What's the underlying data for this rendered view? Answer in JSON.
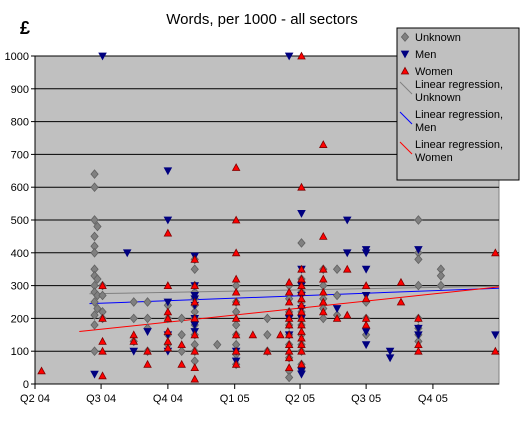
{
  "chart_data": {
    "type": "scatter",
    "title": "Words, per 1000 - all sectors",
    "ylabel": "£",
    "xlabel": "",
    "ylim": [
      0,
      1000
    ],
    "y_ticks": [
      0,
      100,
      200,
      300,
      400,
      500,
      600,
      700,
      800,
      900,
      1000
    ],
    "x_range": [
      "2004-04-01",
      "2005-12-31"
    ],
    "x_ticks": [
      {
        "label": "Q2 04",
        "date": "2004-04-01"
      },
      {
        "label": "Q3 04",
        "date": "2004-07-01"
      },
      {
        "label": "Q4 04",
        "date": "2004-10-01"
      },
      {
        "label": "Q1 05",
        "date": "2005-01-01"
      },
      {
        "label": "Q2 05",
        "date": "2005-04-01"
      },
      {
        "label": "Q3 05",
        "date": "2005-07-01"
      },
      {
        "label": "Q4 05",
        "date": "2005-10-01"
      }
    ],
    "grid": "horizontal",
    "plot_background": "#c0c0c0",
    "legend_placement": "top-right",
    "series": [
      {
        "name": "Unknown",
        "marker": "diamond",
        "color": "#808080",
        "edge": "#606060",
        "points": [
          [
            "2004-06-22",
            640
          ],
          [
            "2004-06-22",
            600
          ],
          [
            "2004-06-22",
            500
          ],
          [
            "2004-06-22",
            450
          ],
          [
            "2004-06-22",
            420
          ],
          [
            "2004-06-22",
            400
          ],
          [
            "2004-06-22",
            350
          ],
          [
            "2004-06-22",
            330
          ],
          [
            "2004-06-22",
            300
          ],
          [
            "2004-06-22",
            280
          ],
          [
            "2004-06-22",
            250
          ],
          [
            "2004-06-22",
            210
          ],
          [
            "2004-06-22",
            180
          ],
          [
            "2004-06-22",
            100
          ],
          [
            "2004-06-26",
            480
          ],
          [
            "2004-06-26",
            320
          ],
          [
            "2004-06-26",
            270
          ],
          [
            "2004-06-26",
            230
          ],
          [
            "2004-07-03",
            300
          ],
          [
            "2004-07-03",
            270
          ],
          [
            "2004-07-03",
            220
          ],
          [
            "2004-07-03",
            200
          ],
          [
            "2004-08-15",
            250
          ],
          [
            "2004-08-15",
            200
          ],
          [
            "2004-08-15",
            130
          ],
          [
            "2004-09-03",
            250
          ],
          [
            "2004-09-03",
            200
          ],
          [
            "2004-09-03",
            170
          ],
          [
            "2004-09-03",
            100
          ],
          [
            "2004-10-01",
            240
          ],
          [
            "2004-10-01",
            200
          ],
          [
            "2004-10-01",
            150
          ],
          [
            "2004-10-01",
            120
          ],
          [
            "2004-10-20",
            200
          ],
          [
            "2004-10-20",
            150
          ],
          [
            "2004-10-20",
            100
          ],
          [
            "2004-11-07",
            380
          ],
          [
            "2004-11-07",
            350
          ],
          [
            "2004-11-07",
            300
          ],
          [
            "2004-11-07",
            280
          ],
          [
            "2004-11-07",
            260
          ],
          [
            "2004-11-07",
            240
          ],
          [
            "2004-11-07",
            220
          ],
          [
            "2004-11-07",
            200
          ],
          [
            "2004-11-07",
            180
          ],
          [
            "2004-11-07",
            150
          ],
          [
            "2004-11-07",
            120
          ],
          [
            "2004-11-07",
            100
          ],
          [
            "2004-11-07",
            70
          ],
          [
            "2004-12-08",
            120
          ],
          [
            "2005-01-03",
            300
          ],
          [
            "2005-01-03",
            250
          ],
          [
            "2005-01-03",
            220
          ],
          [
            "2005-01-03",
            180
          ],
          [
            "2005-01-03",
            150
          ],
          [
            "2005-01-03",
            120
          ],
          [
            "2005-01-03",
            90
          ],
          [
            "2005-01-03",
            60
          ],
          [
            "2005-02-15",
            200
          ],
          [
            "2005-02-15",
            150
          ],
          [
            "2005-02-15",
            100
          ],
          [
            "2005-03-17",
            300
          ],
          [
            "2005-03-17",
            260
          ],
          [
            "2005-03-17",
            220
          ],
          [
            "2005-03-17",
            180
          ],
          [
            "2005-03-17",
            150
          ],
          [
            "2005-03-17",
            120
          ],
          [
            "2005-03-17",
            80
          ],
          [
            "2005-03-17",
            40
          ],
          [
            "2005-03-17",
            20
          ],
          [
            "2005-04-03",
            430
          ],
          [
            "2005-04-03",
            320
          ],
          [
            "2005-04-03",
            280
          ],
          [
            "2005-04-03",
            250
          ],
          [
            "2005-04-03",
            220
          ],
          [
            "2005-04-03",
            200
          ],
          [
            "2005-04-03",
            180
          ],
          [
            "2005-04-03",
            150
          ],
          [
            "2005-04-03",
            120
          ],
          [
            "2005-04-03",
            100
          ],
          [
            "2005-04-03",
            60
          ],
          [
            "2005-04-03",
            40
          ],
          [
            "2005-05-03",
            350
          ],
          [
            "2005-05-03",
            300
          ],
          [
            "2005-05-03",
            260
          ],
          [
            "2005-05-03",
            230
          ],
          [
            "2005-05-03",
            200
          ],
          [
            "2005-05-22",
            350
          ],
          [
            "2005-05-22",
            270
          ],
          [
            "2005-05-22",
            210
          ],
          [
            "2005-07-01",
            250
          ],
          [
            "2005-07-01",
            200
          ],
          [
            "2005-07-01",
            150
          ],
          [
            "2005-09-11",
            500
          ],
          [
            "2005-09-11",
            400
          ],
          [
            "2005-09-11",
            380
          ],
          [
            "2005-09-11",
            300
          ],
          [
            "2005-09-11",
            200
          ],
          [
            "2005-09-11",
            170
          ],
          [
            "2005-09-11",
            150
          ],
          [
            "2005-09-11",
            130
          ],
          [
            "2005-10-12",
            350
          ],
          [
            "2005-10-12",
            330
          ],
          [
            "2005-10-12",
            300
          ]
        ]
      },
      {
        "name": "Men",
        "marker": "triangle-down",
        "color": "#000080",
        "edge": "#000080",
        "points": [
          [
            "2004-06-22",
            30
          ],
          [
            "2004-07-03",
            1000
          ],
          [
            "2004-08-06",
            400
          ],
          [
            "2004-08-15",
            100
          ],
          [
            "2004-09-03",
            160
          ],
          [
            "2004-10-01",
            650
          ],
          [
            "2004-10-01",
            500
          ],
          [
            "2004-10-01",
            250
          ],
          [
            "2004-10-01",
            150
          ],
          [
            "2004-10-01",
            100
          ],
          [
            "2004-11-07",
            390
          ],
          [
            "2004-11-07",
            300
          ],
          [
            "2004-11-07",
            270
          ],
          [
            "2004-11-07",
            260
          ],
          [
            "2004-11-07",
            240
          ],
          [
            "2004-11-07",
            200
          ],
          [
            "2004-11-07",
            180
          ],
          [
            "2004-11-07",
            160
          ],
          [
            "2005-01-03",
            100
          ],
          [
            "2005-01-03",
            70
          ],
          [
            "2005-03-17",
            1000
          ],
          [
            "2005-03-17",
            200
          ],
          [
            "2005-03-17",
            150
          ],
          [
            "2005-04-03",
            520
          ],
          [
            "2005-04-03",
            350
          ],
          [
            "2005-04-03",
            300
          ],
          [
            "2005-04-03",
            270
          ],
          [
            "2005-04-03",
            230
          ],
          [
            "2005-04-03",
            200
          ],
          [
            "2005-04-03",
            40
          ],
          [
            "2005-04-03",
            30
          ],
          [
            "2005-05-22",
            230
          ],
          [
            "2005-06-05",
            500
          ],
          [
            "2005-06-05",
            400
          ],
          [
            "2005-07-01",
            410
          ],
          [
            "2005-07-01",
            400
          ],
          [
            "2005-07-01",
            350
          ],
          [
            "2005-07-01",
            270
          ],
          [
            "2005-07-01",
            160
          ],
          [
            "2005-07-01",
            120
          ],
          [
            "2005-08-03",
            100
          ],
          [
            "2005-08-03",
            80
          ],
          [
            "2005-09-11",
            410
          ],
          [
            "2005-09-11",
            170
          ],
          [
            "2005-09-11",
            150
          ],
          [
            "2005-12-26",
            150
          ]
        ]
      },
      {
        "name": "Women",
        "marker": "triangle-up",
        "color": "#ff0000",
        "edge": "#800000",
        "points": [
          [
            "2004-04-10",
            40
          ],
          [
            "2004-07-03",
            300
          ],
          [
            "2004-07-03",
            200
          ],
          [
            "2004-07-03",
            130
          ],
          [
            "2004-07-03",
            100
          ],
          [
            "2004-07-03",
            25
          ],
          [
            "2004-08-15",
            150
          ],
          [
            "2004-08-15",
            130
          ],
          [
            "2004-09-03",
            100
          ],
          [
            "2004-09-03",
            60
          ],
          [
            "2004-10-01",
            460
          ],
          [
            "2004-10-01",
            300
          ],
          [
            "2004-10-01",
            220
          ],
          [
            "2004-10-01",
            200
          ],
          [
            "2004-10-01",
            160
          ],
          [
            "2004-10-01",
            130
          ],
          [
            "2004-10-01",
            110
          ],
          [
            "2004-10-20",
            120
          ],
          [
            "2004-10-20",
            60
          ],
          [
            "2004-11-07",
            380
          ],
          [
            "2004-11-07",
            300
          ],
          [
            "2004-11-07",
            250
          ],
          [
            "2004-11-07",
            200
          ],
          [
            "2004-11-07",
            150
          ],
          [
            "2004-11-07",
            100
          ],
          [
            "2004-11-07",
            50
          ],
          [
            "2004-11-07",
            15
          ],
          [
            "2005-01-03",
            660
          ],
          [
            "2005-01-03",
            500
          ],
          [
            "2005-01-03",
            400
          ],
          [
            "2005-01-03",
            320
          ],
          [
            "2005-01-03",
            280
          ],
          [
            "2005-01-03",
            250
          ],
          [
            "2005-01-03",
            200
          ],
          [
            "2005-01-03",
            150
          ],
          [
            "2005-01-03",
            100
          ],
          [
            "2005-01-03",
            60
          ],
          [
            "2005-01-26",
            150
          ],
          [
            "2005-02-15",
            100
          ],
          [
            "2005-03-05",
            150
          ],
          [
            "2005-03-17",
            310
          ],
          [
            "2005-03-17",
            280
          ],
          [
            "2005-03-17",
            250
          ],
          [
            "2005-03-17",
            220
          ],
          [
            "2005-03-17",
            200
          ],
          [
            "2005-03-17",
            180
          ],
          [
            "2005-03-17",
            150
          ],
          [
            "2005-03-17",
            120
          ],
          [
            "2005-03-17",
            100
          ],
          [
            "2005-03-17",
            80
          ],
          [
            "2005-03-17",
            50
          ],
          [
            "2005-04-03",
            1000
          ],
          [
            "2005-04-03",
            600
          ],
          [
            "2005-04-03",
            350
          ],
          [
            "2005-04-03",
            320
          ],
          [
            "2005-04-03",
            300
          ],
          [
            "2005-04-03",
            280
          ],
          [
            "2005-04-03",
            260
          ],
          [
            "2005-04-03",
            240
          ],
          [
            "2005-04-03",
            220
          ],
          [
            "2005-04-03",
            200
          ],
          [
            "2005-04-03",
            180
          ],
          [
            "2005-04-03",
            160
          ],
          [
            "2005-04-03",
            140
          ],
          [
            "2005-04-03",
            120
          ],
          [
            "2005-04-03",
            100
          ],
          [
            "2005-04-03",
            60
          ],
          [
            "2005-05-03",
            730
          ],
          [
            "2005-05-03",
            450
          ],
          [
            "2005-05-03",
            350
          ],
          [
            "2005-05-03",
            320
          ],
          [
            "2005-05-03",
            280
          ],
          [
            "2005-05-03",
            250
          ],
          [
            "2005-05-03",
            220
          ],
          [
            "2005-05-22",
            200
          ],
          [
            "2005-06-05",
            350
          ],
          [
            "2005-06-05",
            210
          ],
          [
            "2005-07-01",
            300
          ],
          [
            "2005-07-01",
            260
          ],
          [
            "2005-07-01",
            200
          ],
          [
            "2005-07-01",
            180
          ],
          [
            "2005-08-18",
            310
          ],
          [
            "2005-08-18",
            250
          ],
          [
            "2005-09-11",
            200
          ],
          [
            "2005-09-11",
            120
          ],
          [
            "2005-09-11",
            100
          ],
          [
            "2005-12-26",
            400
          ],
          [
            "2005-12-26",
            100
          ]
        ]
      }
    ],
    "regression_lines": [
      {
        "name": "Linear regression, Unknown",
        "color": "#808080",
        "points": [
          [
            "2004-06-15",
            275
          ],
          [
            "2005-12-31",
            298
          ]
        ]
      },
      {
        "name": "Linear regression, Men",
        "color": "#0000ff",
        "points": [
          [
            "2004-06-15",
            245
          ],
          [
            "2005-12-31",
            292
          ]
        ]
      },
      {
        "name": "Linear regression, Women",
        "color": "#ff0000",
        "points": [
          [
            "2004-06-01",
            160
          ],
          [
            "2005-12-31",
            296
          ]
        ]
      }
    ]
  }
}
